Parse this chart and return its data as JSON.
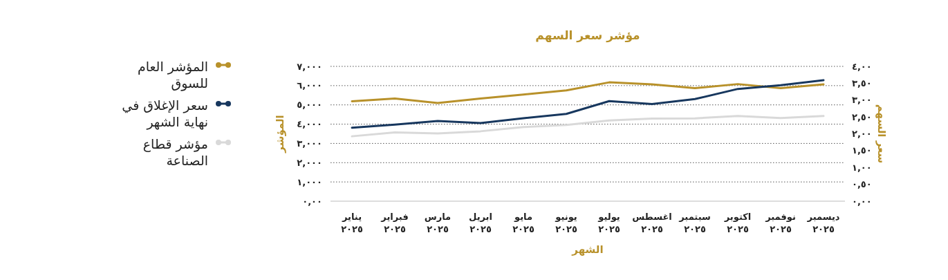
{
  "chart_data": {
    "type": "line",
    "title": "مؤشر سعر السهم",
    "xlabel": "الشهر",
    "ylabel": "المؤشر",
    "y2label": "سعر السهم",
    "categories": [
      "يناير\n٢٠٢٥",
      "فبراير\n٢٠٢٥",
      "مارس\n٢٠٢٥",
      "ابريل\n٢٠٢٥",
      "مايو\n٢٠٢٥",
      "يونيو\n٢٠٢٥",
      "يوليو\n٢٠٢٥",
      "اغسطس\n٢٠٢٥",
      "سبتمبر\n٢٠٢٥",
      "اكتوبر\n٢٠٢٥",
      "نوفمبر\n٢٠٢٥",
      "ديسمبر\n٢٠٢٥"
    ],
    "series": [
      {
        "name": "المؤشر العام للسوق",
        "color": "#b8912a",
        "values": [
          5.19,
          5.33,
          5.1,
          5.33,
          5.54,
          5.75,
          6.17,
          6.07,
          5.87,
          6.08,
          5.87,
          6.07
        ]
      },
      {
        "name": "سعر الإغلاق في نهاية الشهر",
        "color": "#17375e",
        "axis": "y2",
        "values": [
          2.18,
          2.27,
          2.38,
          2.32,
          2.46,
          2.59,
          2.97,
          2.88,
          3.03,
          3.33,
          3.44,
          3.59
        ]
      },
      {
        "name": "مؤشر قطاع الصناعة",
        "color": "#d9d9d9",
        "values": [
          3.37,
          3.57,
          3.52,
          3.63,
          3.85,
          3.96,
          4.19,
          4.29,
          4.3,
          4.42,
          4.32,
          4.42
        ]
      }
    ],
    "ylim": [
      0,
      7
    ],
    "yticks": [
      {
        "value": 0,
        "label": "٠,٠٠"
      },
      {
        "value": 1,
        "label": "١,٠٠٠"
      },
      {
        "value": 2,
        "label": "٢,٠٠٠"
      },
      {
        "value": 3,
        "label": "٣,٠٠٠"
      },
      {
        "value": 4,
        "label": "٤,٠٠٠"
      },
      {
        "value": 5,
        "label": "٥,٠٠٠"
      },
      {
        "value": 6,
        "label": "٦,٠٠٠"
      },
      {
        "value": 7,
        "label": "٧,٠٠٠"
      }
    ],
    "y2lim": [
      0,
      4
    ],
    "y2ticks": [
      {
        "value": 0,
        "label": "٠,٠٠"
      },
      {
        "value": 0.5,
        "label": "٠,٥٠"
      },
      {
        "value": 1,
        "label": "١,٠٠"
      },
      {
        "value": 1.5,
        "label": "١,٥٠"
      },
      {
        "value": 2,
        "label": "٢,٠٠"
      },
      {
        "value": 2.5,
        "label": "٢,٥٠"
      },
      {
        "value": 3,
        "label": "٣,٠٠"
      },
      {
        "value": 3.5,
        "label": "٣,٥٠"
      },
      {
        "value": 4,
        "label": "٤,٠٠"
      }
    ],
    "grid": "y",
    "legend": "left",
    "line_style": "solid"
  }
}
